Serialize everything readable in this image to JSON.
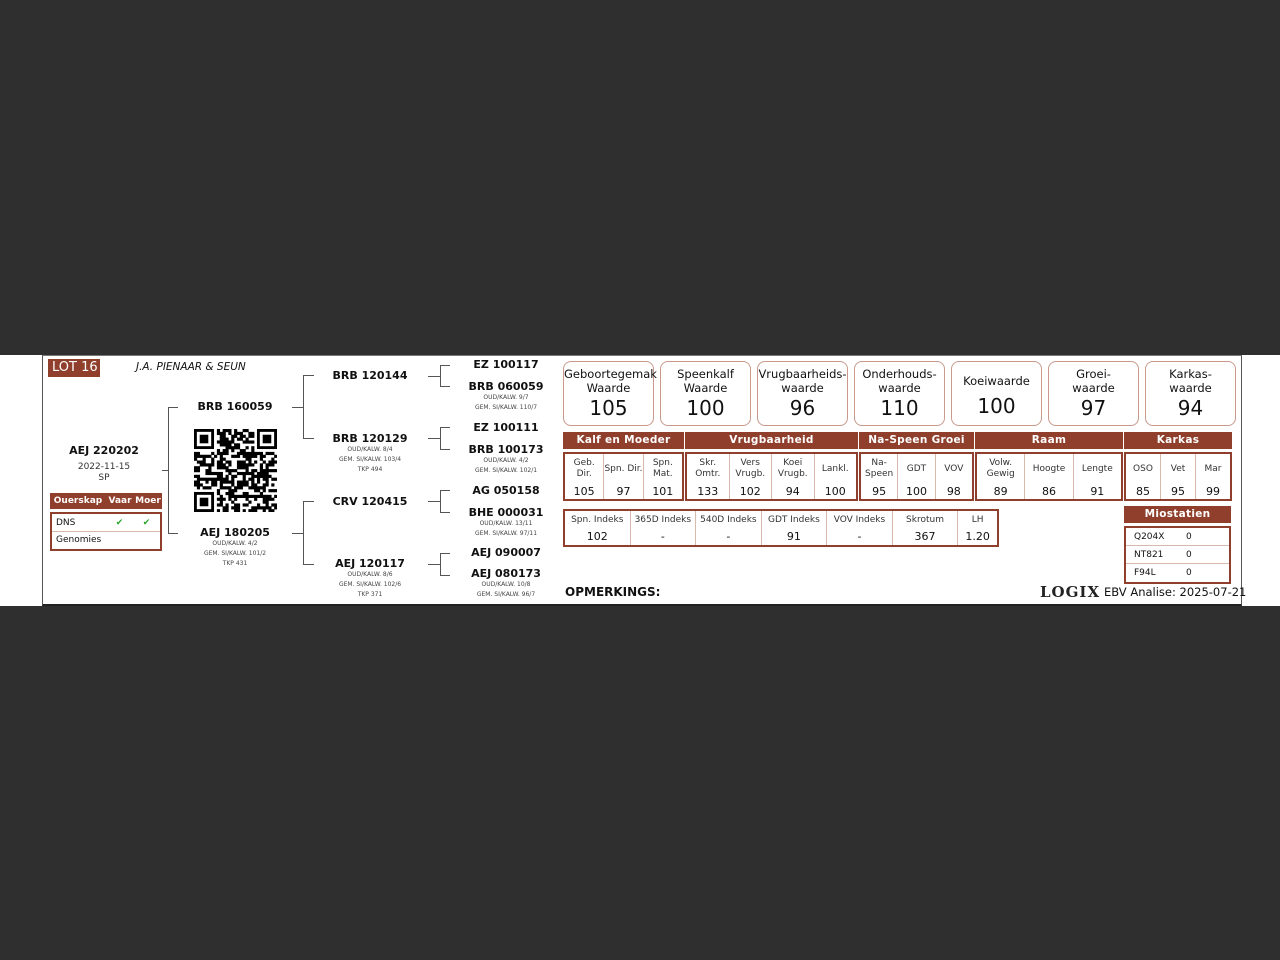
{
  "lot": "LOT 16",
  "owner": "J.A. PIENAAR & SEUN",
  "animal": {
    "id": "AEJ 220202",
    "date": "2022-11-15",
    "type": "SP"
  },
  "parentage": {
    "headers": [
      "Ouerskap",
      "Vaar",
      "Moer"
    ],
    "rows": [
      {
        "label": "DNS",
        "vaar": "✔",
        "moer": "✔"
      },
      {
        "label": "Genomies",
        "vaar": "",
        "moer": ""
      }
    ]
  },
  "sire": {
    "id": "BRB 160059"
  },
  "dam": {
    "id": "AEJ 180205",
    "lines": [
      "OUD/KALW. 4/2",
      "GEM. SI/KALW. 101/2",
      "TKP 431"
    ]
  },
  "gen2": [
    {
      "id": "BRB 120144",
      "lines": []
    },
    {
      "id": "BRB 120129",
      "lines": [
        "OUD/KALW. 8/4",
        "GEM. SI/KALW. 103/4",
        "TKP 494"
      ]
    },
    {
      "id": "CRV 120415",
      "lines": []
    },
    {
      "id": "AEJ 120117",
      "lines": [
        "OUD/KALW. 8/6",
        "GEM. SI/KALW. 102/6",
        "TKP 371"
      ]
    }
  ],
  "gen3": [
    {
      "id": "EZ 100117",
      "lines": []
    },
    {
      "id": "BRB 060059",
      "lines": [
        "OUD/KALW. 9/7",
        "GEM. SI/KALW. 110/7"
      ]
    },
    {
      "id": "EZ 100111",
      "lines": []
    },
    {
      "id": "BRB 100173",
      "lines": [
        "OUD/KALW. 4/2",
        "GEM. SI/KALW. 102/1"
      ]
    },
    {
      "id": "AG 050158",
      "lines": []
    },
    {
      "id": "BHE 000031",
      "lines": [
        "OUD/KALW. 13/11",
        "GEM. SI/KALW. 97/11"
      ]
    },
    {
      "id": "AEJ 090007",
      "lines": []
    },
    {
      "id": "AEJ 080173",
      "lines": [
        "OUD/KALW. 10/8",
        "GEM. SI/KALW. 96/7"
      ]
    }
  ],
  "values": [
    {
      "l1": "Geboortegemak",
      "l2": "Waarde",
      "v": "105"
    },
    {
      "l1": "Speenkalf",
      "l2": "Waarde",
      "v": "100"
    },
    {
      "l1": "Vrugbaarheids-",
      "l2": "waarde",
      "v": "96"
    },
    {
      "l1": "Onderhouds-",
      "l2": "waarde",
      "v": "110"
    },
    {
      "l1": "Koeiwaarde",
      "l2": "",
      "v": "100"
    },
    {
      "l1": "Groei-",
      "l2": "waarde",
      "v": "97"
    },
    {
      "l1": "Karkas-",
      "l2": "waarde",
      "v": "94"
    }
  ],
  "groups": [
    {
      "name": "Kalf en Moeder",
      "cells": [
        {
          "h": "Geb. Dir.",
          "v": "105"
        },
        {
          "h": "Spn. Dir.",
          "v": "97"
        },
        {
          "h": "Spn. Mat.",
          "v": "101"
        }
      ]
    },
    {
      "name": "Vrugbaarheid",
      "cells": [
        {
          "h": "Skr. Omtr.",
          "v": "133"
        },
        {
          "h": "Vers Vrugb.",
          "v": "102"
        },
        {
          "h": "Koei Vrugb.",
          "v": "94"
        },
        {
          "h": "Lankl.",
          "v": "100"
        }
      ]
    },
    {
      "name": "Na-Speen Groei",
      "cells": [
        {
          "h": "Na- Speen",
          "v": "95"
        },
        {
          "h": "GDT",
          "v": "100"
        },
        {
          "h": "VOV",
          "v": "98"
        }
      ]
    },
    {
      "name": "Raam",
      "cells": [
        {
          "h": "Volw. Gewig",
          "v": "89"
        },
        {
          "h": "Hoogte",
          "v": "86"
        },
        {
          "h": "Lengte",
          "v": "91"
        }
      ]
    },
    {
      "name": "Karkas",
      "cells": [
        {
          "h": "OSO",
          "v": "85"
        },
        {
          "h": "Vet",
          "v": "95"
        },
        {
          "h": "Mar",
          "v": "99"
        }
      ]
    }
  ],
  "indexes": [
    {
      "h": "Spn. Indeks",
      "v": "102"
    },
    {
      "h": "365D Indeks",
      "v": "-"
    },
    {
      "h": "540D Indeks",
      "v": "-"
    },
    {
      "h": "GDT Indeks",
      "v": "91"
    },
    {
      "h": "VOV Indeks",
      "v": "-"
    },
    {
      "h": "Skrotum",
      "v": "367"
    },
    {
      "h": "LH",
      "v": "1.20"
    }
  ],
  "myostatin": {
    "title": "Miostatien",
    "rows": [
      {
        "k": "Q204X",
        "v": "0"
      },
      {
        "k": "NT821",
        "v": "0"
      },
      {
        "k": "F94L",
        "v": "0"
      }
    ]
  },
  "remarks_label": "OPMERKINGS:",
  "logo": "LOGIX",
  "ebv_date": "EBV Analise: 2025-07-21",
  "colors": {
    "brand": "#8f3f2b",
    "check": "#2aa52a",
    "background": "#2f2f2f"
  }
}
